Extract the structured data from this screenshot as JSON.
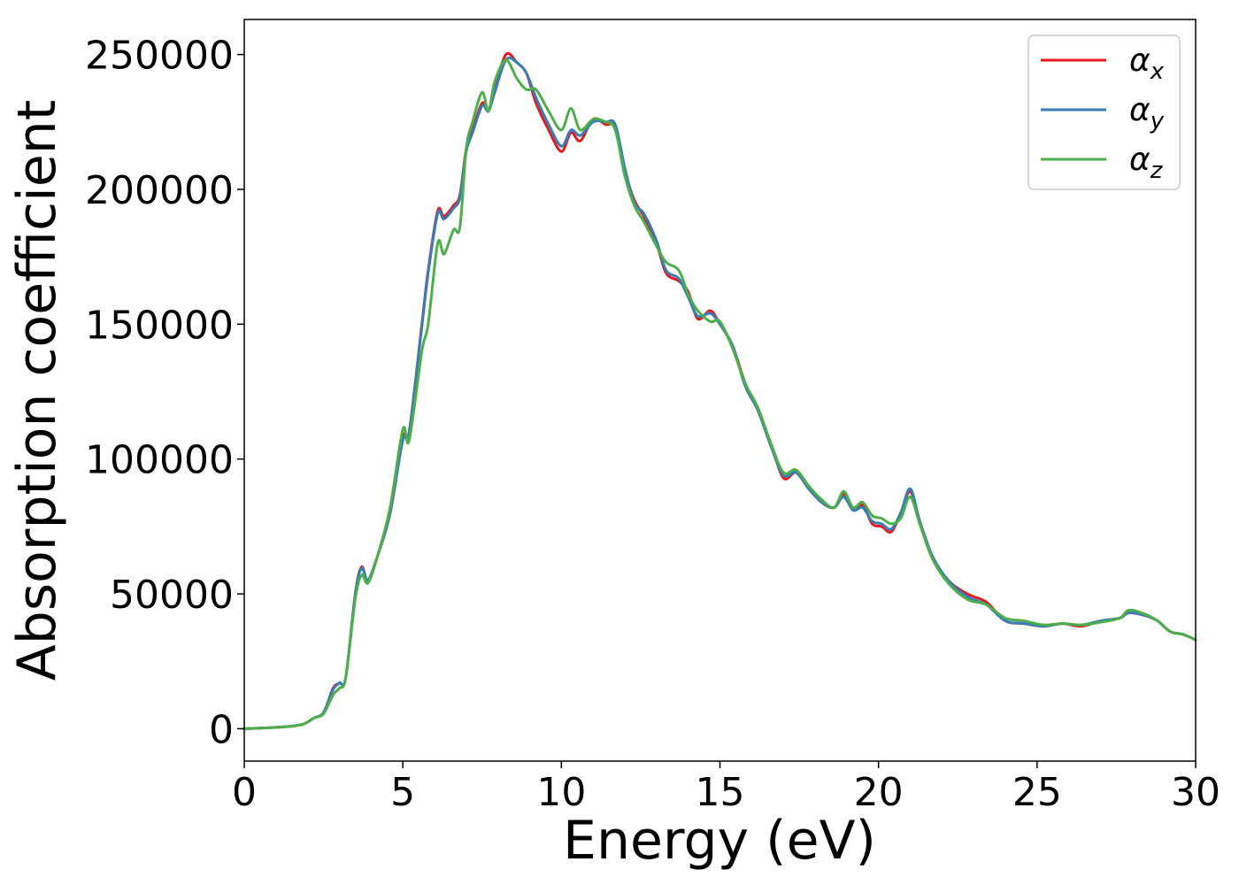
{
  "chart_data": {
    "type": "line",
    "title": "",
    "xlabel": "Energy (eV)",
    "ylabel": "Absorption coefficient",
    "xlim": [
      0,
      30
    ],
    "ylim": [
      -12000,
      263000
    ],
    "xticks": [
      0,
      5,
      10,
      15,
      20,
      25,
      30
    ],
    "yticks": [
      0,
      50000,
      100000,
      150000,
      200000,
      250000
    ],
    "xtick_labels": [
      "0",
      "5",
      "10",
      "15",
      "20",
      "25",
      "30"
    ],
    "ytick_labels": [
      "0",
      "50000",
      "100000",
      "150000",
      "200000",
      "250000"
    ],
    "grid": false,
    "legend_position": "top-right",
    "series": [
      {
        "name": "αx",
        "symbol": "α",
        "subscript": "x",
        "color": "#e41a1c",
        "x": [
          0,
          1,
          1.8,
          2.2,
          2.5,
          2.8,
          3.0,
          3.2,
          3.5,
          3.7,
          3.9,
          4.2,
          4.6,
          5.0,
          5.2,
          5.6,
          5.8,
          6.1,
          6.3,
          6.6,
          6.8,
          7.0,
          7.2,
          7.5,
          7.7,
          7.9,
          8.25,
          8.6,
          8.9,
          9.2,
          9.6,
          10.0,
          10.3,
          10.6,
          11.0,
          11.4,
          11.7,
          12.0,
          12.3,
          12.6,
          13.0,
          13.3,
          13.7,
          14.0,
          14.3,
          14.7,
          15.0,
          15.4,
          15.8,
          16.2,
          16.6,
          17.0,
          17.4,
          17.8,
          18.2,
          18.6,
          18.9,
          19.2,
          19.5,
          19.8,
          20.1,
          20.4,
          20.7,
          21.0,
          21.3,
          21.7,
          22.2,
          22.8,
          23.4,
          24.0,
          24.6,
          25.2,
          25.8,
          26.4,
          27.0,
          27.6,
          27.9,
          28.4,
          28.8,
          29.2,
          29.6,
          30.0
        ],
        "y": [
          0,
          500,
          1500,
          4000,
          6000,
          15000,
          17000,
          19000,
          50000,
          60000,
          55000,
          64000,
          80000,
          108000,
          110000,
          150000,
          170000,
          192000,
          190000,
          194000,
          198000,
          215000,
          222000,
          232000,
          229000,
          237000,
          250000,
          247000,
          243000,
          232000,
          222000,
          214000,
          221000,
          218000,
          226000,
          224000,
          223000,
          207000,
          196000,
          190000,
          180000,
          169000,
          166000,
          162000,
          152000,
          155000,
          150000,
          142000,
          128000,
          118000,
          106000,
          93000,
          95000,
          89000,
          84000,
          82000,
          87000,
          81000,
          83000,
          76000,
          75000,
          73000,
          80000,
          88000,
          77000,
          64000,
          55000,
          50000,
          47000,
          40000,
          39000,
          38000,
          39000,
          38000,
          40000,
          41000,
          43000,
          42000,
          40000,
          36000,
          35000,
          33000
        ]
      },
      {
        "name": "αy",
        "symbol": "α",
        "subscript": "y",
        "color": "#377eb8",
        "x": [
          0,
          1,
          1.8,
          2.2,
          2.5,
          2.8,
          3.0,
          3.2,
          3.5,
          3.7,
          3.9,
          4.2,
          4.6,
          5.0,
          5.2,
          5.6,
          5.8,
          6.1,
          6.3,
          6.6,
          6.8,
          7.0,
          7.2,
          7.5,
          7.7,
          7.9,
          8.25,
          8.6,
          8.9,
          9.2,
          9.6,
          10.0,
          10.3,
          10.6,
          11.0,
          11.4,
          11.7,
          12.0,
          12.3,
          12.6,
          13.0,
          13.3,
          13.7,
          14.0,
          14.3,
          14.7,
          15.0,
          15.4,
          15.8,
          16.2,
          16.6,
          17.0,
          17.4,
          17.8,
          18.2,
          18.6,
          18.9,
          19.2,
          19.5,
          19.8,
          20.1,
          20.4,
          20.7,
          21.0,
          21.3,
          21.7,
          22.2,
          22.8,
          23.4,
          24.0,
          24.6,
          25.2,
          25.8,
          26.4,
          27.0,
          27.6,
          27.9,
          28.4,
          28.8,
          29.2,
          29.6,
          30.0
        ],
        "y": [
          0,
          500,
          1500,
          4000,
          6000,
          14500,
          17000,
          19000,
          50000,
          59500,
          55000,
          64000,
          80000,
          107000,
          110000,
          149000,
          169000,
          191000,
          189000,
          193000,
          197000,
          214000,
          221000,
          231000,
          229000,
          236000,
          248000,
          247000,
          243000,
          234000,
          224000,
          216000,
          222000,
          220000,
          225000,
          225000,
          224000,
          208000,
          195000,
          191000,
          181000,
          170000,
          167000,
          160000,
          153000,
          154000,
          150000,
          142000,
          127000,
          118000,
          105000,
          94000,
          95000,
          89000,
          84000,
          82000,
          86000,
          81000,
          82000,
          77000,
          76000,
          74000,
          80000,
          89000,
          77000,
          64000,
          55000,
          49000,
          46000,
          40000,
          39000,
          38000,
          39000,
          38500,
          40000,
          41000,
          43000,
          42000,
          40000,
          36000,
          35000,
          33000
        ]
      },
      {
        "name": "αz",
        "symbol": "α",
        "subscript": "z",
        "color": "#4daf4a",
        "x": [
          0,
          1,
          1.8,
          2.2,
          2.5,
          2.8,
          3.0,
          3.2,
          3.5,
          3.7,
          3.9,
          4.2,
          4.6,
          5.0,
          5.2,
          5.6,
          5.8,
          6.1,
          6.3,
          6.6,
          6.8,
          7.0,
          7.2,
          7.5,
          7.7,
          7.9,
          8.25,
          8.6,
          8.9,
          9.2,
          9.6,
          10.0,
          10.3,
          10.6,
          11.0,
          11.4,
          11.7,
          12.0,
          12.3,
          12.6,
          13.0,
          13.3,
          13.7,
          14.0,
          14.3,
          14.7,
          15.0,
          15.4,
          15.8,
          16.2,
          16.6,
          17.0,
          17.4,
          17.8,
          18.2,
          18.6,
          18.9,
          19.2,
          19.5,
          19.8,
          20.1,
          20.4,
          20.7,
          21.0,
          21.3,
          21.7,
          22.2,
          22.8,
          23.4,
          24.0,
          24.6,
          25.2,
          25.8,
          26.4,
          27.0,
          27.6,
          27.9,
          28.4,
          28.8,
          29.2,
          29.6,
          30.0
        ],
        "y": [
          0,
          500,
          1500,
          4000,
          5500,
          12500,
          15000,
          19000,
          48000,
          57000,
          54000,
          64000,
          82000,
          111000,
          107000,
          140000,
          150000,
          180000,
          176000,
          185000,
          186000,
          215000,
          225000,
          236000,
          229000,
          240000,
          248000,
          241000,
          237000,
          237000,
          229000,
          222000,
          230000,
          222000,
          226000,
          225000,
          222000,
          205000,
          194000,
          188000,
          179000,
          173000,
          170000,
          161000,
          155000,
          151000,
          151000,
          141000,
          128000,
          119000,
          106000,
          95000,
          96000,
          90000,
          85000,
          82000,
          88000,
          82000,
          84000,
          79000,
          78000,
          76000,
          78000,
          86000,
          76000,
          63000,
          54000,
          48000,
          46000,
          41000,
          40000,
          38500,
          39000,
          38500,
          39500,
          41000,
          44000,
          42500,
          40000,
          36000,
          35000,
          33000
        ]
      }
    ]
  }
}
